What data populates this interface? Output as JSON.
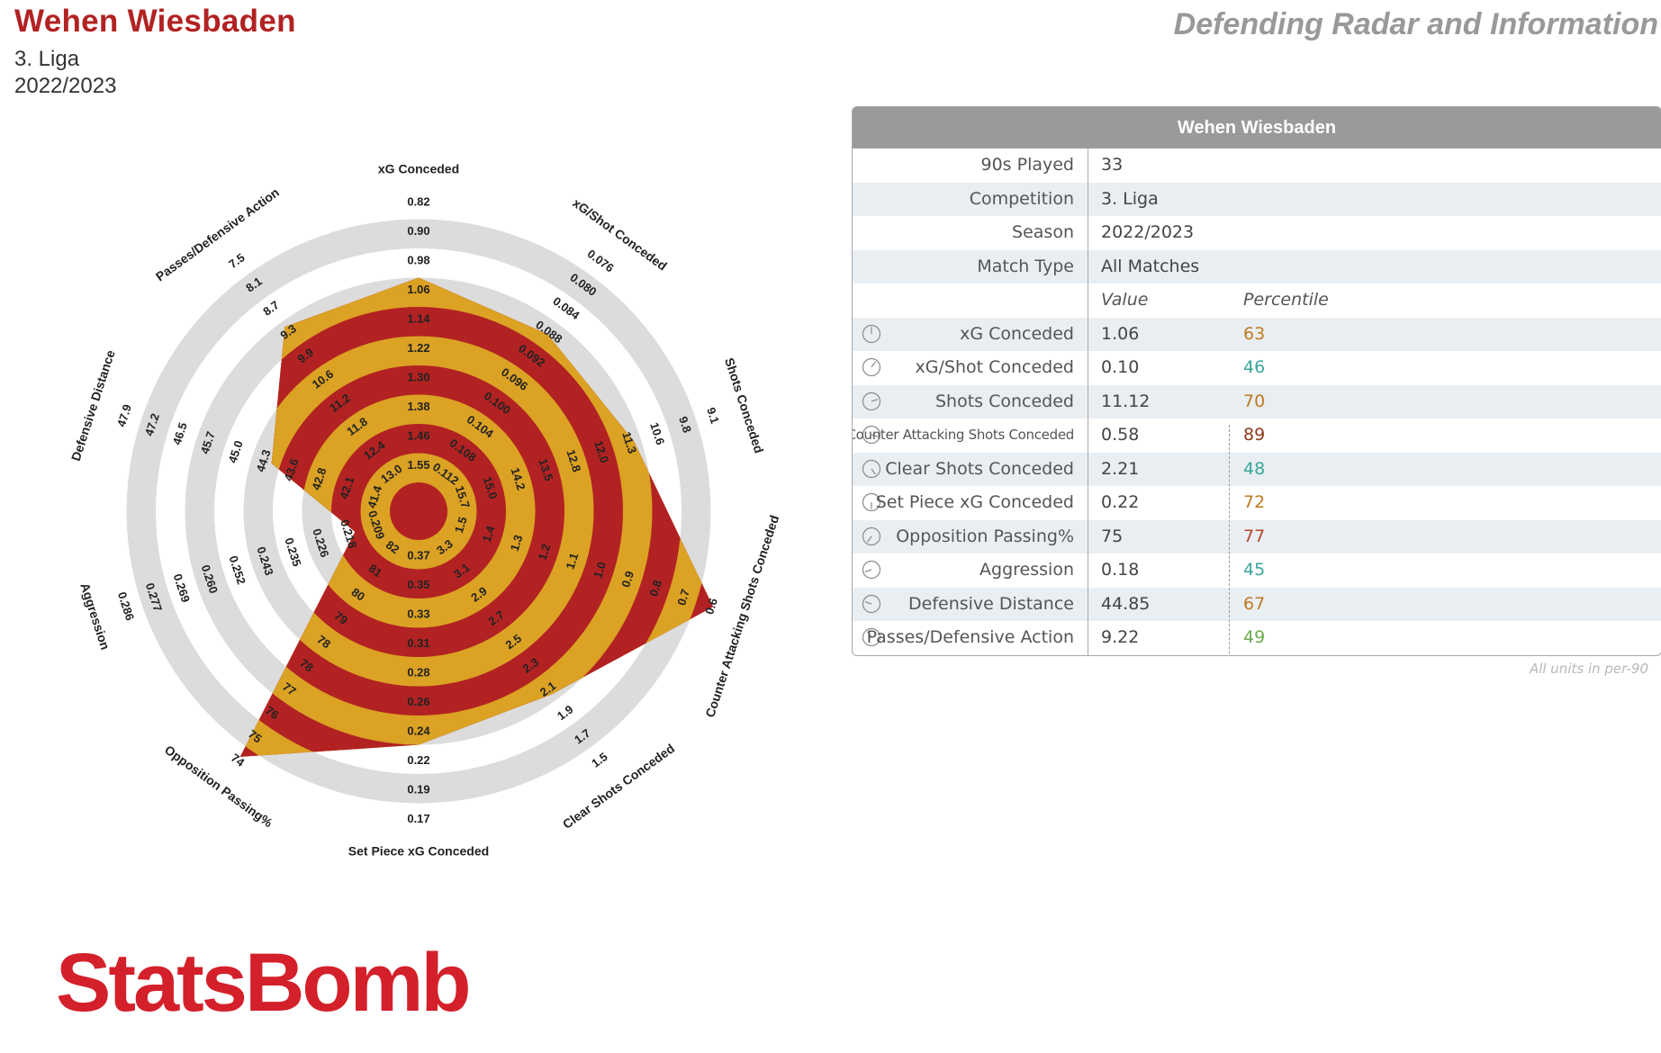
{
  "header": {
    "team": "Wehen Wiesbaden",
    "competition": "3. Liga",
    "season": "2022/2023",
    "title_right": "Defending Radar and Information"
  },
  "colors": {
    "title": "#b22222",
    "radar_outer": "#dba224",
    "radar_inner": "#b22222",
    "ring_grey": "#dcdcdc",
    "table_header": "#9a9a9a",
    "logo": "#d4202a"
  },
  "table": {
    "header": "Wehen Wiesbaden",
    "info_rows": [
      {
        "label": "90s Played",
        "value": "33"
      },
      {
        "label": "Competition",
        "value": "3. Liga"
      },
      {
        "label": "Season",
        "value": "2022/2023"
      },
      {
        "label": "Match Type",
        "value": "All Matches"
      }
    ],
    "col_value": "Value",
    "col_percentile": "Percentile",
    "metric_rows": [
      {
        "label": "xG Conceded",
        "value": "1.06",
        "percentile": "63",
        "pct_color": "#c07a1e",
        "icon": "gauge-icon"
      },
      {
        "label": "xG/Shot Conceded",
        "value": "0.10",
        "percentile": "46",
        "pct_color": "#3aa79b",
        "icon": "gauge-icon"
      },
      {
        "label": "Shots Conceded",
        "value": "11.12",
        "percentile": "70",
        "pct_color": "#c07a1e",
        "icon": "gauge-icon"
      },
      {
        "label": "Counter Attacking Shots Conceded",
        "value": "0.58",
        "percentile": "89",
        "pct_color": "#8b3a1a",
        "icon": "gauge-icon"
      },
      {
        "label": "Clear Shots Conceded",
        "value": "2.21",
        "percentile": "48",
        "pct_color": "#3aa79b",
        "icon": "gauge-icon"
      },
      {
        "label": "Set Piece xG Conceded",
        "value": "0.22",
        "percentile": "72",
        "pct_color": "#c07a1e",
        "icon": "gauge-icon"
      },
      {
        "label": "Opposition Passing%",
        "value": "75",
        "percentile": "77",
        "pct_color": "#b5482a",
        "icon": "gauge-icon"
      },
      {
        "label": "Aggression",
        "value": "0.18",
        "percentile": "45",
        "pct_color": "#3aa79b",
        "icon": "gauge-icon"
      },
      {
        "label": "Defensive Distance",
        "value": "44.85",
        "percentile": "67",
        "pct_color": "#c07a1e",
        "icon": "gauge-icon"
      },
      {
        "label": "Passes/Defensive Action",
        "value": "9.22",
        "percentile": "49",
        "pct_color": "#6bab4b",
        "icon": "gauge-icon"
      }
    ],
    "footnote": "All units in per-90"
  },
  "logo": "StatsBomb",
  "chart_data": {
    "type": "radar",
    "axes": [
      {
        "label": "xG Conceded",
        "ticks": [
          "0.82",
          "0.90",
          "0.98",
          "1.06",
          "1.14",
          "1.22",
          "1.30",
          "1.38",
          "1.46",
          "1.55"
        ],
        "value": 1.06
      },
      {
        "label": "xG/Shot Conceded",
        "ticks": [
          "0.076",
          "0.080",
          "0.084",
          "0.088",
          "0.092",
          "0.096",
          "0.100",
          "0.104",
          "0.108",
          "0.112"
        ],
        "value": 0.1
      },
      {
        "label": "Shots Conceded",
        "ticks": [
          "9.1",
          "9.8",
          "10.6",
          "11.3",
          "12.0",
          "12.8",
          "13.5",
          "14.2",
          "15.0",
          "15.7"
        ],
        "value": 11.12
      },
      {
        "label": "Counter Attacking Shots Conceded",
        "ticks": [
          "0.6",
          "0.7",
          "0.8",
          "0.9",
          "1.0",
          "1.1",
          "1.2",
          "1.3",
          "1.4",
          "1.5"
        ],
        "value": 0.58
      },
      {
        "label": "Clear Shots Conceded",
        "ticks": [
          "1.5",
          "1.7",
          "1.9",
          "2.1",
          "2.3",
          "2.5",
          "2.7",
          "2.9",
          "3.1",
          "3.3"
        ],
        "value": 2.21
      },
      {
        "label": "Set Piece xG Conceded",
        "ticks": [
          "0.17",
          "0.19",
          "0.22",
          "0.24",
          "0.26",
          "0.28",
          "0.31",
          "0.33",
          "0.35",
          "0.37"
        ],
        "value": 0.22
      },
      {
        "label": "Opposition Passing%",
        "ticks": [
          "74",
          "75",
          "76",
          "77",
          "78",
          "78",
          "79",
          "80",
          "81",
          "82"
        ],
        "value": 75
      },
      {
        "label": "Aggression",
        "ticks": [
          "0.286",
          "0.277",
          "0.269",
          "0.260",
          "0.252",
          "0.243",
          "0.235",
          "0.226",
          "0.218",
          "0.209"
        ],
        "value": 0.18
      },
      {
        "label": "Defensive Distance",
        "ticks": [
          "47.9",
          "47.2",
          "46.5",
          "45.7",
          "45.0",
          "44.3",
          "43.6",
          "42.8",
          "42.1",
          "41.4"
        ],
        "value": 44.85
      },
      {
        "label": "Passes/Defensive Action",
        "ticks": [
          "7.5",
          "8.1",
          "8.7",
          "9.3",
          "9.9",
          "10.6",
          "11.2",
          "11.8",
          "12.4",
          "13.0"
        ],
        "value": 9.22
      }
    ],
    "polygon_levels": [
      7.0,
      6.5,
      6.75,
      9.6,
      6.75,
      7.0,
      9.4,
      1.3,
      4.3,
      6.8
    ],
    "levels": 10,
    "fill_bands": "alternating red/gold within polygon, grey/white rings outside"
  }
}
